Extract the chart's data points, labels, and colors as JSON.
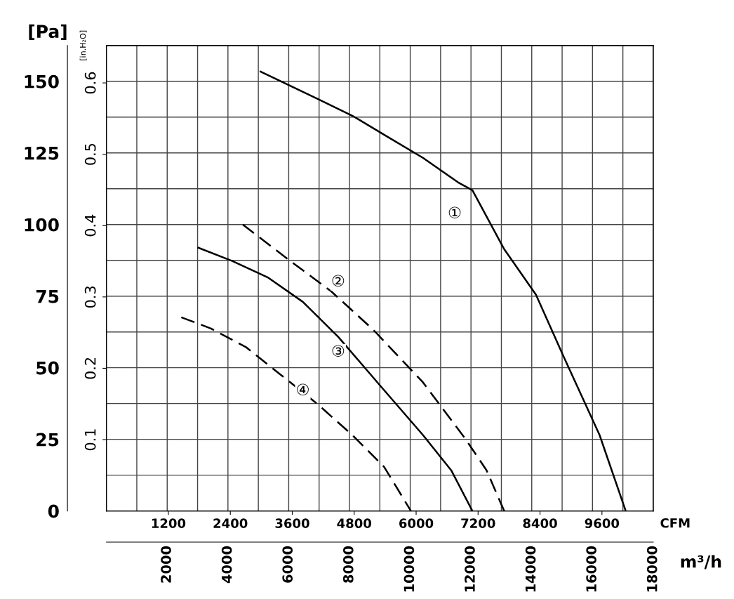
{
  "chart_data": {
    "type": "line",
    "xlabel": "m³/h",
    "x2label": "CFM",
    "ylabel": "[Pa]",
    "y2label": "[in.H₂O]",
    "xlim": [
      0,
      18000
    ],
    "xticks": [
      {
        "value": 1000,
        "label": null
      },
      2000,
      {
        "value": 3000,
        "label": null
      },
      4000,
      {
        "value": 5000,
        "label": null
      },
      6000,
      {
        "value": 7000,
        "label": null
      },
      8000,
      {
        "value": 9000,
        "label": null
      },
      10000,
      {
        "value": 11000,
        "label": null
      },
      12000,
      {
        "value": 13000,
        "label": null
      },
      14000,
      {
        "value": 15000,
        "label": null
      },
      16000,
      {
        "value": 17000,
        "label": null
      },
      18000
    ],
    "x2lim": [
      0,
      10594
    ],
    "x2ticks": [
      1200,
      2400,
      3600,
      4800,
      6000,
      7200,
      8400,
      9600
    ],
    "ylim": [
      0,
      162.5
    ],
    "yticks": [
      0,
      {
        "value": 12.5,
        "label": null
      },
      25,
      {
        "value": 37.5,
        "label": null
      },
      50,
      {
        "value": 62.5,
        "label": null
      },
      75,
      {
        "value": 87.5,
        "label": null
      },
      100,
      {
        "value": 112.5,
        "label": null
      },
      125,
      {
        "value": 137.5,
        "label": null
      },
      150
    ],
    "y2lim": [
      0,
      0.6524
    ],
    "y2ticks": [
      0.1,
      0.2,
      0.3,
      0.4,
      0.5,
      0.6
    ],
    "grid": true,
    "marker": "none",
    "series": [
      {
        "color": "#000000",
        "line_style": "solid",
        "x": [
          5070,
          6930,
          8093,
          9256,
          10419,
          11580,
          12047,
          13093,
          14140,
          15070,
          16233,
          17093
        ],
        "values": [
          153.4,
          144,
          138,
          130.6,
          123.3,
          114.7,
          112,
          91.4,
          75.5,
          53.4,
          26.5,
          0
        ]
      },
      {
        "color": "#000000",
        "line_style": "dashed",
        "x": [
          4488,
          6000,
          7395,
          8790,
          10419,
          11814,
          12512,
          13093
        ],
        "values": [
          100,
          87.7,
          76.7,
          63.2,
          44.9,
          25.2,
          14.2,
          0
        ]
      },
      {
        "color": "#000000",
        "line_style": "solid",
        "x": [
          3023,
          4140,
          5302,
          6465,
          7628,
          9023,
          10419,
          11349,
          12047
        ],
        "values": [
          91.9,
          87.3,
          81.6,
          73,
          60.8,
          43.6,
          26.5,
          14.2,
          0
        ]
      },
      {
        "color": "#000000",
        "line_style": "dashed",
        "x": [
          2465,
          3442,
          4605,
          5767,
          6930,
          8093,
          9140,
          10023
        ],
        "values": [
          67.6,
          63.7,
          57.1,
          47.3,
          37.5,
          26.5,
          15.4,
          0
        ]
      }
    ],
    "annotations": [
      {
        "text": "①",
        "x": 11465,
        "y": 103.7
      },
      {
        "text": "②",
        "x": 7628,
        "y": 79.9
      },
      {
        "text": "③",
        "x": 7628,
        "y": 55.4
      },
      {
        "text": "④",
        "x": 6465,
        "y": 41.9
      }
    ]
  }
}
